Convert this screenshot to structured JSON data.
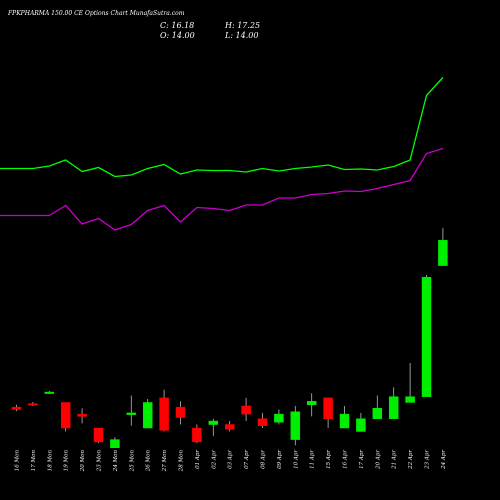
{
  "header": {
    "title": "FPKPHARMA 150.00  CE Options  Chart MunafaSutra.com",
    "c_label": "C: 16.18",
    "h_label": "H: 17.25",
    "o_label": "O: 14.00",
    "l_label": "L: 14.00"
  },
  "chart_data": {
    "type": "candlestick",
    "categories": [
      "16 Mon",
      "17 Mon",
      "18 Mon",
      "19 Mon",
      "20 Mon",
      "23 Mon",
      "24 Mon",
      "25 Mon",
      "26 Mon",
      "27 Mon",
      "28 Mon",
      "01 Apr",
      "02 Apr",
      "03 Apr",
      "07 Apr",
      "08 Apr",
      "09 Apr",
      "10 Apr",
      "11 Apr",
      "15 Apr",
      "16 Apr",
      "17 Apr",
      "20 Apr",
      "21 Apr",
      "22 Apr",
      "23 Apr",
      "24 Apr"
    ],
    "candles": [
      {
        "open": 1.8,
        "high": 2.0,
        "low": 1.45,
        "close": 1.6
      },
      {
        "open": 2.1,
        "high": 2.25,
        "low": 1.9,
        "close": 2.05
      },
      {
        "open": 3.05,
        "high": 3.2,
        "low": 2.95,
        "close": 3.1
      },
      {
        "open": 2.2,
        "high": 2.2,
        "low": -0.3,
        "close": 0.0
      },
      {
        "open": 1.2,
        "high": 1.7,
        "low": 0.4,
        "close": 1.0
      },
      {
        "open": 0.0,
        "high": 0.0,
        "low": -1.3,
        "close": -1.2
      },
      {
        "open": -1.7,
        "high": -0.8,
        "low": -1.7,
        "close": -1.0
      },
      {
        "open": 1.15,
        "high": 2.8,
        "low": 0.2,
        "close": 1.3
      },
      {
        "open": 0.0,
        "high": 2.5,
        "low": 0.0,
        "close": 2.2
      },
      {
        "open": 2.6,
        "high": 3.3,
        "low": -0.3,
        "close": -0.2
      },
      {
        "open": 1.8,
        "high": 2.3,
        "low": 0.3,
        "close": 0.9
      },
      {
        "open": 0.0,
        "high": 0.3,
        "low": -1.3,
        "close": -1.2
      },
      {
        "open": 0.3,
        "high": 0.8,
        "low": -0.7,
        "close": 0.6
      },
      {
        "open": 0.3,
        "high": 0.6,
        "low": -0.3,
        "close": -0.1
      },
      {
        "open": 1.9,
        "high": 2.6,
        "low": 0.6,
        "close": 1.2
      },
      {
        "open": 0.8,
        "high": 1.3,
        "low": 0.0,
        "close": 0.2
      },
      {
        "open": 0.5,
        "high": 1.6,
        "low": 0.3,
        "close": 1.2
      },
      {
        "open": -1.0,
        "high": 1.9,
        "low": -1.5,
        "close": 1.4
      },
      {
        "open": 2.0,
        "high": 3.0,
        "low": 1.0,
        "close": 2.3
      },
      {
        "open": 2.6,
        "high": 2.6,
        "low": 0.0,
        "close": 0.8
      },
      {
        "open": 0.0,
        "high": 1.9,
        "low": 0.0,
        "close": 1.2
      },
      {
        "open": -0.3,
        "high": 1.3,
        "low": -0.3,
        "close": 0.8
      },
      {
        "open": 0.8,
        "high": 2.8,
        "low": 0.8,
        "close": 1.7
      },
      {
        "open": 0.8,
        "high": 3.5,
        "low": 0.8,
        "close": 2.7
      },
      {
        "open": 2.2,
        "high": 5.6,
        "low": 2.2,
        "close": 2.7
      },
      {
        "open": 2.7,
        "high": 13.2,
        "low": 2.7,
        "close": 13.0
      },
      {
        "open": 14.0,
        "high": 17.25,
        "low": 14.0,
        "close": 16.18
      }
    ],
    "green_line": [
      168.5,
      168.5,
      166.0,
      160.0,
      171.5,
      167.5,
      176.5,
      175.0,
      168.5,
      164.5,
      174.0,
      170.0,
      170.5,
      170.5,
      172.0,
      168.5,
      171.0,
      168.5,
      167.0,
      165.0,
      169.5,
      169.0,
      170.0,
      166.5,
      160.0,
      95.5,
      77.5
    ],
    "magenta_line": [
      215.5,
      215.5,
      215.5,
      205.5,
      224.0,
      218.5,
      230.0,
      224.5,
      210.5,
      205.5,
      222.0,
      207.5,
      208.5,
      210.5,
      205.0,
      205.0,
      198.0,
      198.0,
      194.5,
      193.5,
      191.0,
      191.5,
      188.5,
      184.5,
      180.5,
      153.5,
      148.5
    ]
  }
}
